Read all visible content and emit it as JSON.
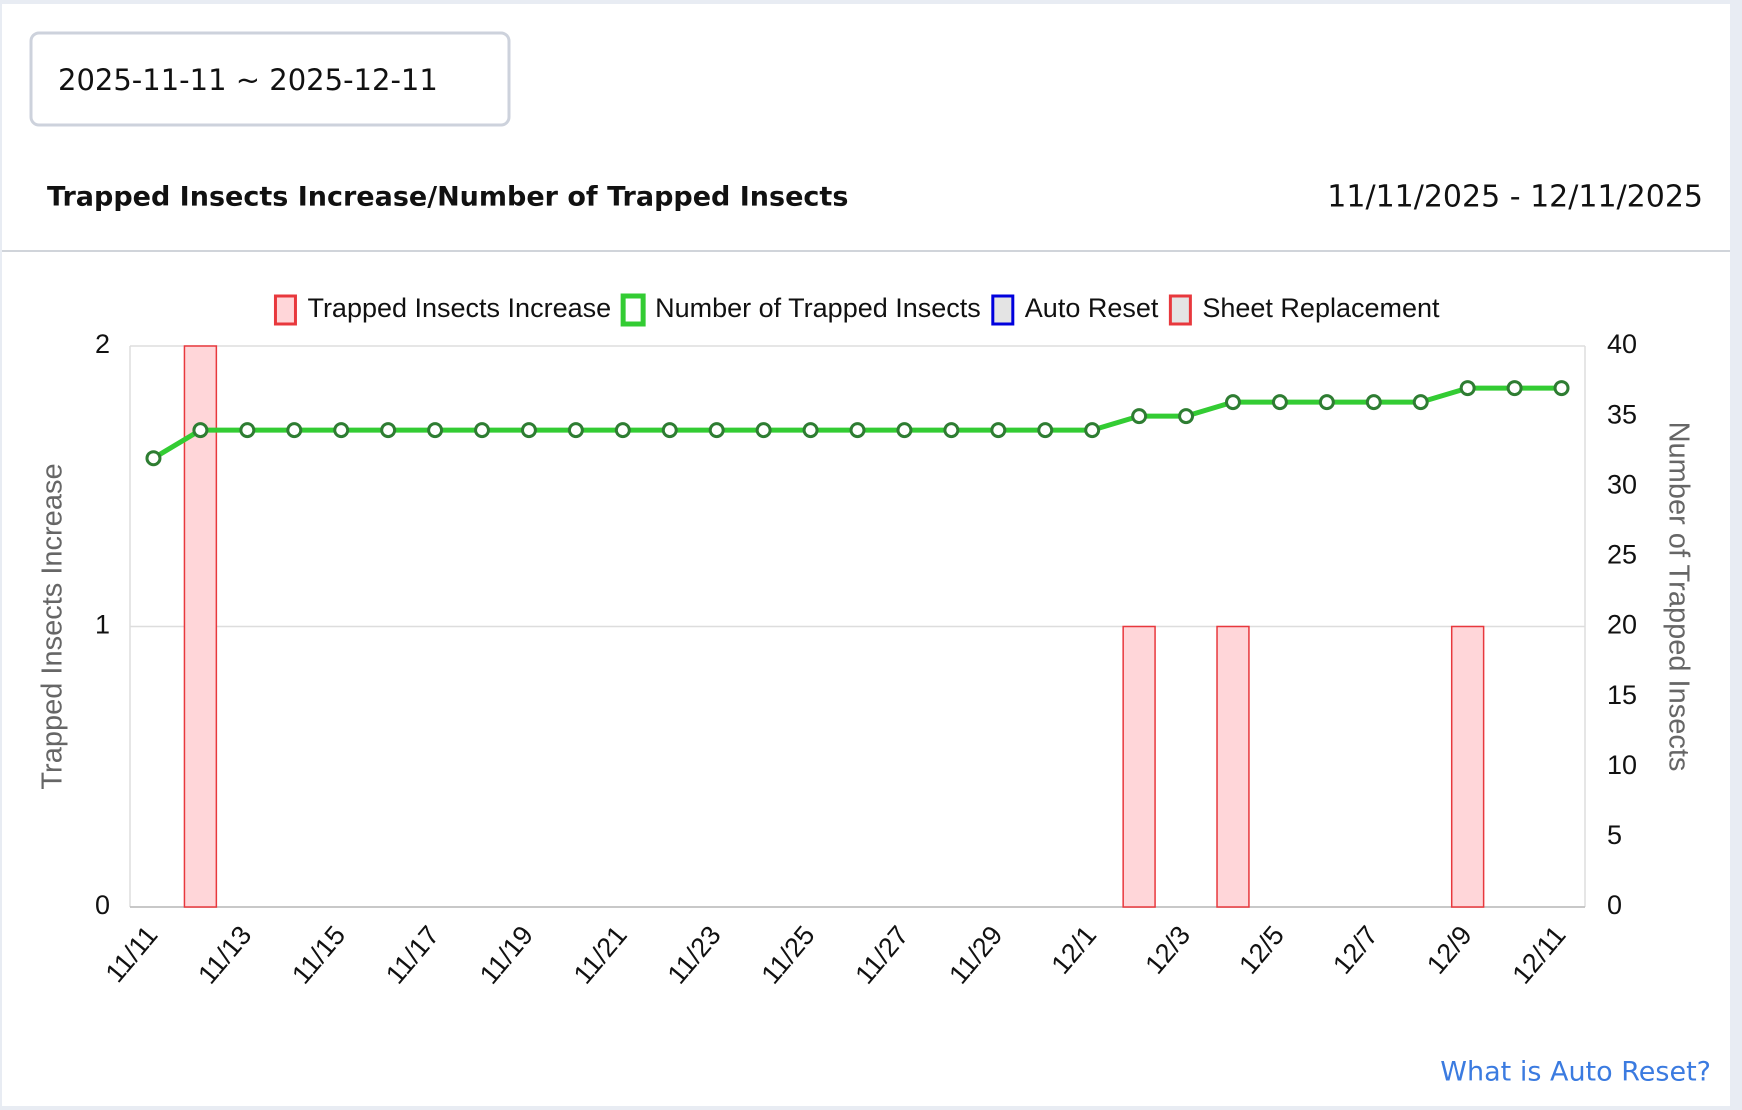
{
  "date_picker": {
    "value": "2025-11-11 ~ 2025-12-11"
  },
  "chart_data": {
    "type": "bar-line",
    "title": "Trapped Insects Increase/Number of Trapped Insects",
    "subtitle": "11/11/2025 - 12/11/2025",
    "categories": [
      "11/11",
      null,
      "11/13",
      null,
      "11/15",
      null,
      "11/17",
      null,
      "11/19",
      null,
      "11/21",
      null,
      "11/23",
      null,
      "11/25",
      null,
      "11/27",
      null,
      "11/29",
      null,
      "12/1",
      null,
      "12/3",
      null,
      "12/5",
      null,
      "12/7",
      null,
      "12/9",
      null,
      "12/11"
    ],
    "y_label": "Trapped Insects Increase",
    "y2_label": "Number of Trapped Insects",
    "ylim": [
      0,
      2
    ],
    "yticks": [
      0,
      1,
      2
    ],
    "y2lim": [
      0,
      40
    ],
    "y2ticks": [
      0,
      5,
      10,
      15,
      20,
      25,
      30,
      35,
      40
    ],
    "grid": true,
    "series": [
      {
        "name": "Trapped Insects Increase",
        "type": "bar",
        "color": "#e8383d",
        "fill": "#ffd6d9",
        "values": [
          0,
          2,
          0,
          0,
          0,
          0,
          0,
          0,
          0,
          0,
          0,
          0,
          0,
          0,
          0,
          0,
          0,
          0,
          0,
          0,
          0,
          1,
          0,
          1,
          0,
          0,
          0,
          0,
          1,
          0,
          0
        ]
      },
      {
        "name": "Number of Trapped Insects",
        "type": "line",
        "axis": "y2",
        "color": "#33cc33",
        "marker_color": "#2e7d32",
        "values": [
          32,
          34,
          34,
          34,
          34,
          34,
          34,
          34,
          34,
          34,
          34,
          34,
          34,
          34,
          34,
          34,
          34,
          34,
          34,
          34,
          34,
          35,
          35,
          36,
          36,
          36,
          36,
          36,
          37,
          37,
          37
        ]
      },
      {
        "name": "Auto Reset",
        "type": "marker",
        "color": "#0000dd"
      },
      {
        "name": "Sheet Replacement",
        "type": "marker",
        "color": "#e8383d"
      }
    ]
  },
  "footer": {
    "link": "What is Auto Reset?"
  }
}
